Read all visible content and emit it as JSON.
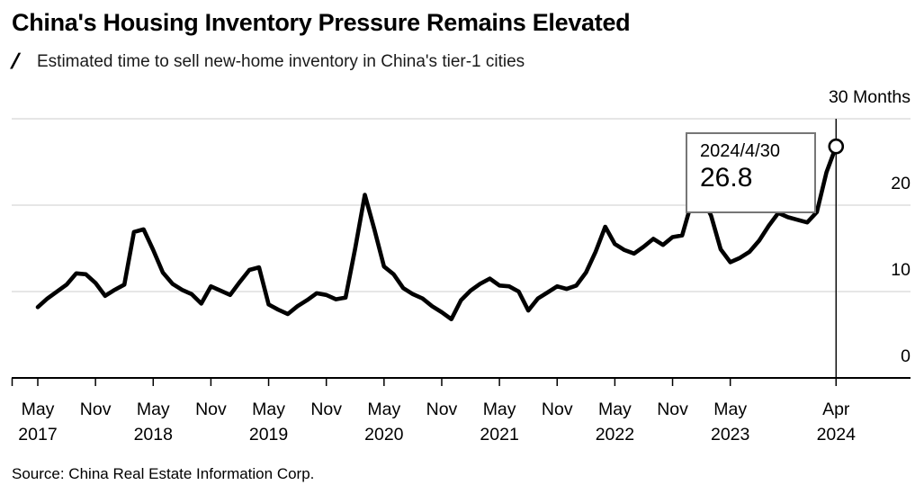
{
  "header": {
    "title": "China's Housing Inventory Pressure Remains Elevated",
    "slash_icon": "/",
    "subtitle": "Estimated time to sell new-home inventory in China's tier-1 cities"
  },
  "tooltip": {
    "date": "2024/4/30",
    "value": "26.8"
  },
  "source": {
    "text": "Source: China Real Estate Information Corp."
  },
  "colors": {
    "line": "#000000",
    "grid": "#d8d8d8",
    "axis": "#000000",
    "marker_fill": "#ffffff",
    "marker_stroke": "#000000",
    "tooltip_border": "#767676"
  },
  "chart_data": {
    "type": "line",
    "title": "China's Housing Inventory Pressure Remains Elevated",
    "subtitle": "Estimated time to sell new-home inventory in China's tier-1 cities",
    "unit": "Months",
    "frequency": "monthly",
    "x_start": "2017-05",
    "x_end": "2024-04",
    "ylim": [
      0,
      30
    ],
    "grid": true,
    "legend": "none",
    "series": [
      {
        "name": "Estimated time to sell new-home inventory (months)",
        "color": "#000000",
        "values": [
          8.2,
          9.2,
          10.0,
          10.8,
          12.1,
          12.0,
          11.0,
          9.5,
          10.2,
          10.8,
          16.9,
          17.2,
          14.8,
          12.2,
          10.9,
          10.2,
          9.7,
          8.6,
          10.6,
          10.1,
          9.6,
          11.1,
          12.5,
          12.8,
          8.5,
          7.9,
          7.4,
          8.3,
          9.0,
          9.8,
          9.6,
          9.1,
          9.3,
          15.0,
          21.2,
          17.2,
          12.9,
          12.0,
          10.4,
          9.7,
          9.2,
          8.3,
          7.6,
          6.8,
          9.0,
          10.1,
          10.9,
          11.5,
          10.7,
          10.6,
          10.0,
          7.8,
          9.2,
          9.9,
          10.6,
          10.3,
          10.7,
          12.2,
          14.6,
          17.5,
          15.5,
          14.8,
          14.4,
          15.2,
          16.1,
          15.4,
          16.3,
          16.5,
          20.4,
          21.0,
          18.8,
          14.9,
          13.4,
          13.9,
          14.6,
          15.9,
          17.6,
          19.1,
          18.6,
          18.3,
          18.0,
          19.2,
          23.8,
          26.8
        ]
      }
    ],
    "x_ticks": [
      {
        "month": "May",
        "year": "2017",
        "index": 0
      },
      {
        "month": "Nov",
        "year": "",
        "index": 6
      },
      {
        "month": "May",
        "year": "2018",
        "index": 12
      },
      {
        "month": "Nov",
        "year": "",
        "index": 18
      },
      {
        "month": "May",
        "year": "2019",
        "index": 24
      },
      {
        "month": "Nov",
        "year": "",
        "index": 30
      },
      {
        "month": "May",
        "year": "2020",
        "index": 36
      },
      {
        "month": "Nov",
        "year": "",
        "index": 42
      },
      {
        "month": "May",
        "year": "2021",
        "index": 48
      },
      {
        "month": "Nov",
        "year": "",
        "index": 54
      },
      {
        "month": "May",
        "year": "2022",
        "index": 60
      },
      {
        "month": "Nov",
        "year": "",
        "index": 66
      },
      {
        "month": "May",
        "year": "2023",
        "index": 72
      },
      {
        "month": "Apr",
        "year": "2024",
        "index": 83
      }
    ],
    "y_ticks": [
      {
        "value": 0,
        "label": "0"
      },
      {
        "value": 10,
        "label": "10"
      },
      {
        "value": 20,
        "label": "20"
      },
      {
        "value": 30,
        "label": "30 Months"
      }
    ],
    "last_point": {
      "date": "2024/4/30",
      "value": 26.8,
      "index": 83
    }
  }
}
